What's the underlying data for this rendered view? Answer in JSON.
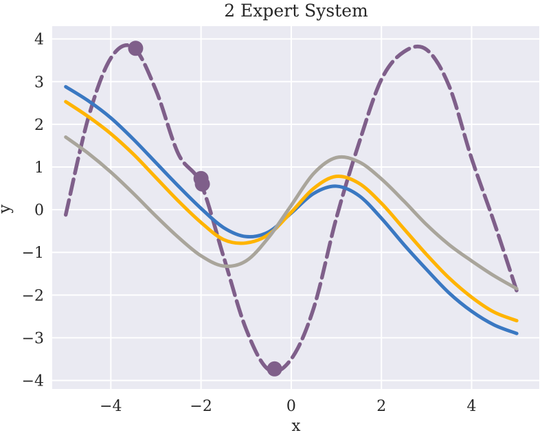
{
  "chart_data": {
    "type": "line",
    "title": "2 Expert System",
    "xlabel": "x",
    "ylabel": "y",
    "xlim": [
      -5.3,
      5.5
    ],
    "ylim": [
      -4.2,
      4.3
    ],
    "grid": true,
    "x_ticks": [
      {
        "value": -4,
        "label": "−4"
      },
      {
        "value": -2,
        "label": "−2"
      },
      {
        "value": 0,
        "label": "0"
      },
      {
        "value": 2,
        "label": "2"
      },
      {
        "value": 4,
        "label": "4"
      }
    ],
    "y_ticks": [
      {
        "value": 4,
        "label": "4"
      },
      {
        "value": 3,
        "label": "3"
      },
      {
        "value": 2,
        "label": "2"
      },
      {
        "value": 1,
        "label": "1"
      },
      {
        "value": 0,
        "label": "0"
      },
      {
        "value": -1,
        "label": "−1"
      },
      {
        "value": -2,
        "label": "−2"
      },
      {
        "value": -3,
        "label": "−3"
      },
      {
        "value": -4,
        "label": "−4"
      }
    ],
    "series": [
      {
        "color": "#7f5f8a",
        "style": "dashed",
        "x": [
          -5,
          -4.5,
          -4,
          -3.5,
          -3,
          -2.5,
          -2,
          -1.5,
          -1,
          -0.5,
          0,
          0.5,
          1,
          1.5,
          2,
          2.5,
          3,
          3.5,
          4,
          4.5,
          5
        ],
        "y": [
          -0.12,
          2.15,
          3.55,
          3.8,
          2.8,
          1.3,
          0.6,
          -1.1,
          -2.8,
          -3.75,
          -3.5,
          -2.3,
          -0.2,
          1.55,
          3.05,
          3.7,
          3.75,
          2.9,
          1.2,
          -0.3,
          -1.9
        ]
      },
      {
        "color": "#3a78c2",
        "style": "solid",
        "x": [
          -5,
          -4.5,
          -4,
          -3.5,
          -3,
          -2.5,
          -2,
          -1.5,
          -1,
          -0.5,
          0,
          0.5,
          1,
          1.5,
          2,
          2.5,
          3,
          3.5,
          4,
          4.5,
          5
        ],
        "y": [
          2.88,
          2.55,
          2.15,
          1.65,
          1.1,
          0.55,
          0.03,
          -0.42,
          -0.63,
          -0.52,
          -0.08,
          0.38,
          0.55,
          0.33,
          -0.2,
          -0.82,
          -1.4,
          -1.95,
          -2.38,
          -2.7,
          -2.9
        ]
      },
      {
        "color": "#ffb400",
        "style": "solid",
        "x": [
          -5,
          -4.5,
          -4,
          -3.5,
          -3,
          -2.5,
          -2,
          -1.5,
          -1,
          -0.5,
          0,
          0.5,
          1,
          1.5,
          2,
          2.5,
          3,
          3.5,
          4,
          4.5,
          5
        ],
        "y": [
          2.53,
          2.18,
          1.78,
          1.3,
          0.75,
          0.2,
          -0.3,
          -0.7,
          -0.78,
          -0.58,
          -0.06,
          0.5,
          0.78,
          0.62,
          0.15,
          -0.45,
          -1.05,
          -1.6,
          -2.05,
          -2.4,
          -2.6
        ]
      },
      {
        "color": "#a9a59b",
        "style": "solid",
        "x": [
          -5,
          -4.5,
          -4,
          -3.5,
          -3,
          -2.5,
          -2,
          -1.5,
          -1,
          -0.5,
          0,
          0.5,
          1,
          1.5,
          2,
          2.5,
          3,
          3.5,
          4,
          4.5,
          5
        ],
        "y": [
          1.7,
          1.32,
          0.88,
          0.38,
          -0.15,
          -0.65,
          -1.08,
          -1.32,
          -1.2,
          -0.65,
          0.1,
          0.85,
          1.22,
          1.12,
          0.72,
          0.2,
          -0.35,
          -0.82,
          -1.2,
          -1.55,
          -1.85
        ]
      }
    ],
    "markers": {
      "color": "#7f5f8a",
      "points": [
        {
          "x": -3.45,
          "y": 3.78
        },
        {
          "x": -2.0,
          "y": 0.73
        },
        {
          "x": -1.97,
          "y": 0.6
        },
        {
          "x": -0.37,
          "y": -3.73
        }
      ]
    }
  }
}
